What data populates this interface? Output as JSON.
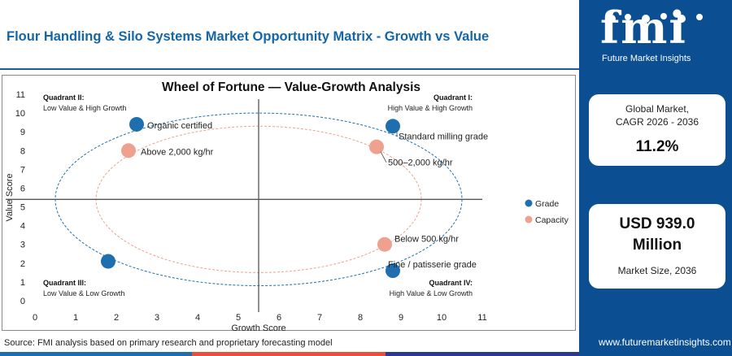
{
  "page": {
    "title": "Flour Handling & Silo Systems Market Opportunity Matrix - Growth vs Value",
    "source": "Source: FMI analysis based on primary research and proprietary forecasting model",
    "url": "www.futuremarketinsights.com"
  },
  "brand": {
    "logo_text": "fmi",
    "logo_subtitle": "Future Market Insights",
    "colors": {
      "primary": "#0b4f92",
      "title_blue": "#1566a8",
      "grade": "#1f6fae",
      "capacity": "#eea18e",
      "bar": [
        "#1f6fae",
        "#e8503a",
        "#2a3b8f",
        "#7a7a7a"
      ]
    }
  },
  "kpis": [
    {
      "label_lines": [
        "Global Market,",
        "CAGR 2026 - 2036"
      ],
      "value": "11.2%"
    },
    {
      "value_lines": [
        "USD 939.0",
        "Million"
      ],
      "label": "Market Size, 2036"
    }
  ],
  "chart_data": {
    "type": "scatter",
    "title": "Wheel of Fortune — Value-Growth Analysis",
    "xlabel": "Growth Score",
    "ylabel": "Value Score",
    "xlim": [
      0,
      11
    ],
    "ylim": [
      0,
      11
    ],
    "xticks": [
      0,
      1,
      2,
      3,
      4,
      5,
      6,
      7,
      8,
      9,
      10,
      11
    ],
    "yticks": [
      0,
      1,
      2,
      3,
      4,
      5,
      6,
      7,
      8,
      9,
      10,
      11
    ],
    "divider_x": 5.5,
    "divider_y": 5.4,
    "legend_position": "right",
    "quadrants": [
      {
        "title": "Quadrant II:",
        "subtitle": "Low Value & High Growth",
        "position": "top-left"
      },
      {
        "title": "Quadrant I:",
        "subtitle": "High Value & High Growth",
        "position": "top-right"
      },
      {
        "title": "Quadrant III:",
        "subtitle": "Low Value & Low Growth",
        "position": "bottom-left"
      },
      {
        "title": "Quadrant IV:",
        "subtitle": "High Value & Low Growth",
        "position": "bottom-right"
      }
    ],
    "series": [
      {
        "name": "Grade",
        "color": "#1f6fae",
        "points": [
          {
            "label": "Organic certified",
            "x": 2.5,
            "y": 9.4
          },
          {
            "label": "Standard milling grade",
            "x": 8.8,
            "y": 9.3
          },
          {
            "label": "Fine / patisserie grade",
            "x": 8.8,
            "y": 1.6
          },
          {
            "label": "",
            "x": 1.8,
            "y": 2.1
          }
        ]
      },
      {
        "name": "Capacity",
        "color": "#eea18e",
        "points": [
          {
            "label": "Above 2,000 kg/hr",
            "x": 2.3,
            "y": 8.0
          },
          {
            "label": "500–2,000 kg/hr",
            "x": 8.4,
            "y": 8.2
          },
          {
            "label": "Below 500 kg/hr",
            "x": 8.6,
            "y": 3.0
          }
        ]
      }
    ],
    "ellipses": [
      {
        "series": "Grade",
        "cx": 5.5,
        "cy": 5.4,
        "rx": 5.0,
        "ry": 4.6
      },
      {
        "series": "Capacity",
        "cx": 5.5,
        "cy": 5.4,
        "rx": 4.0,
        "ry": 3.9
      }
    ]
  }
}
